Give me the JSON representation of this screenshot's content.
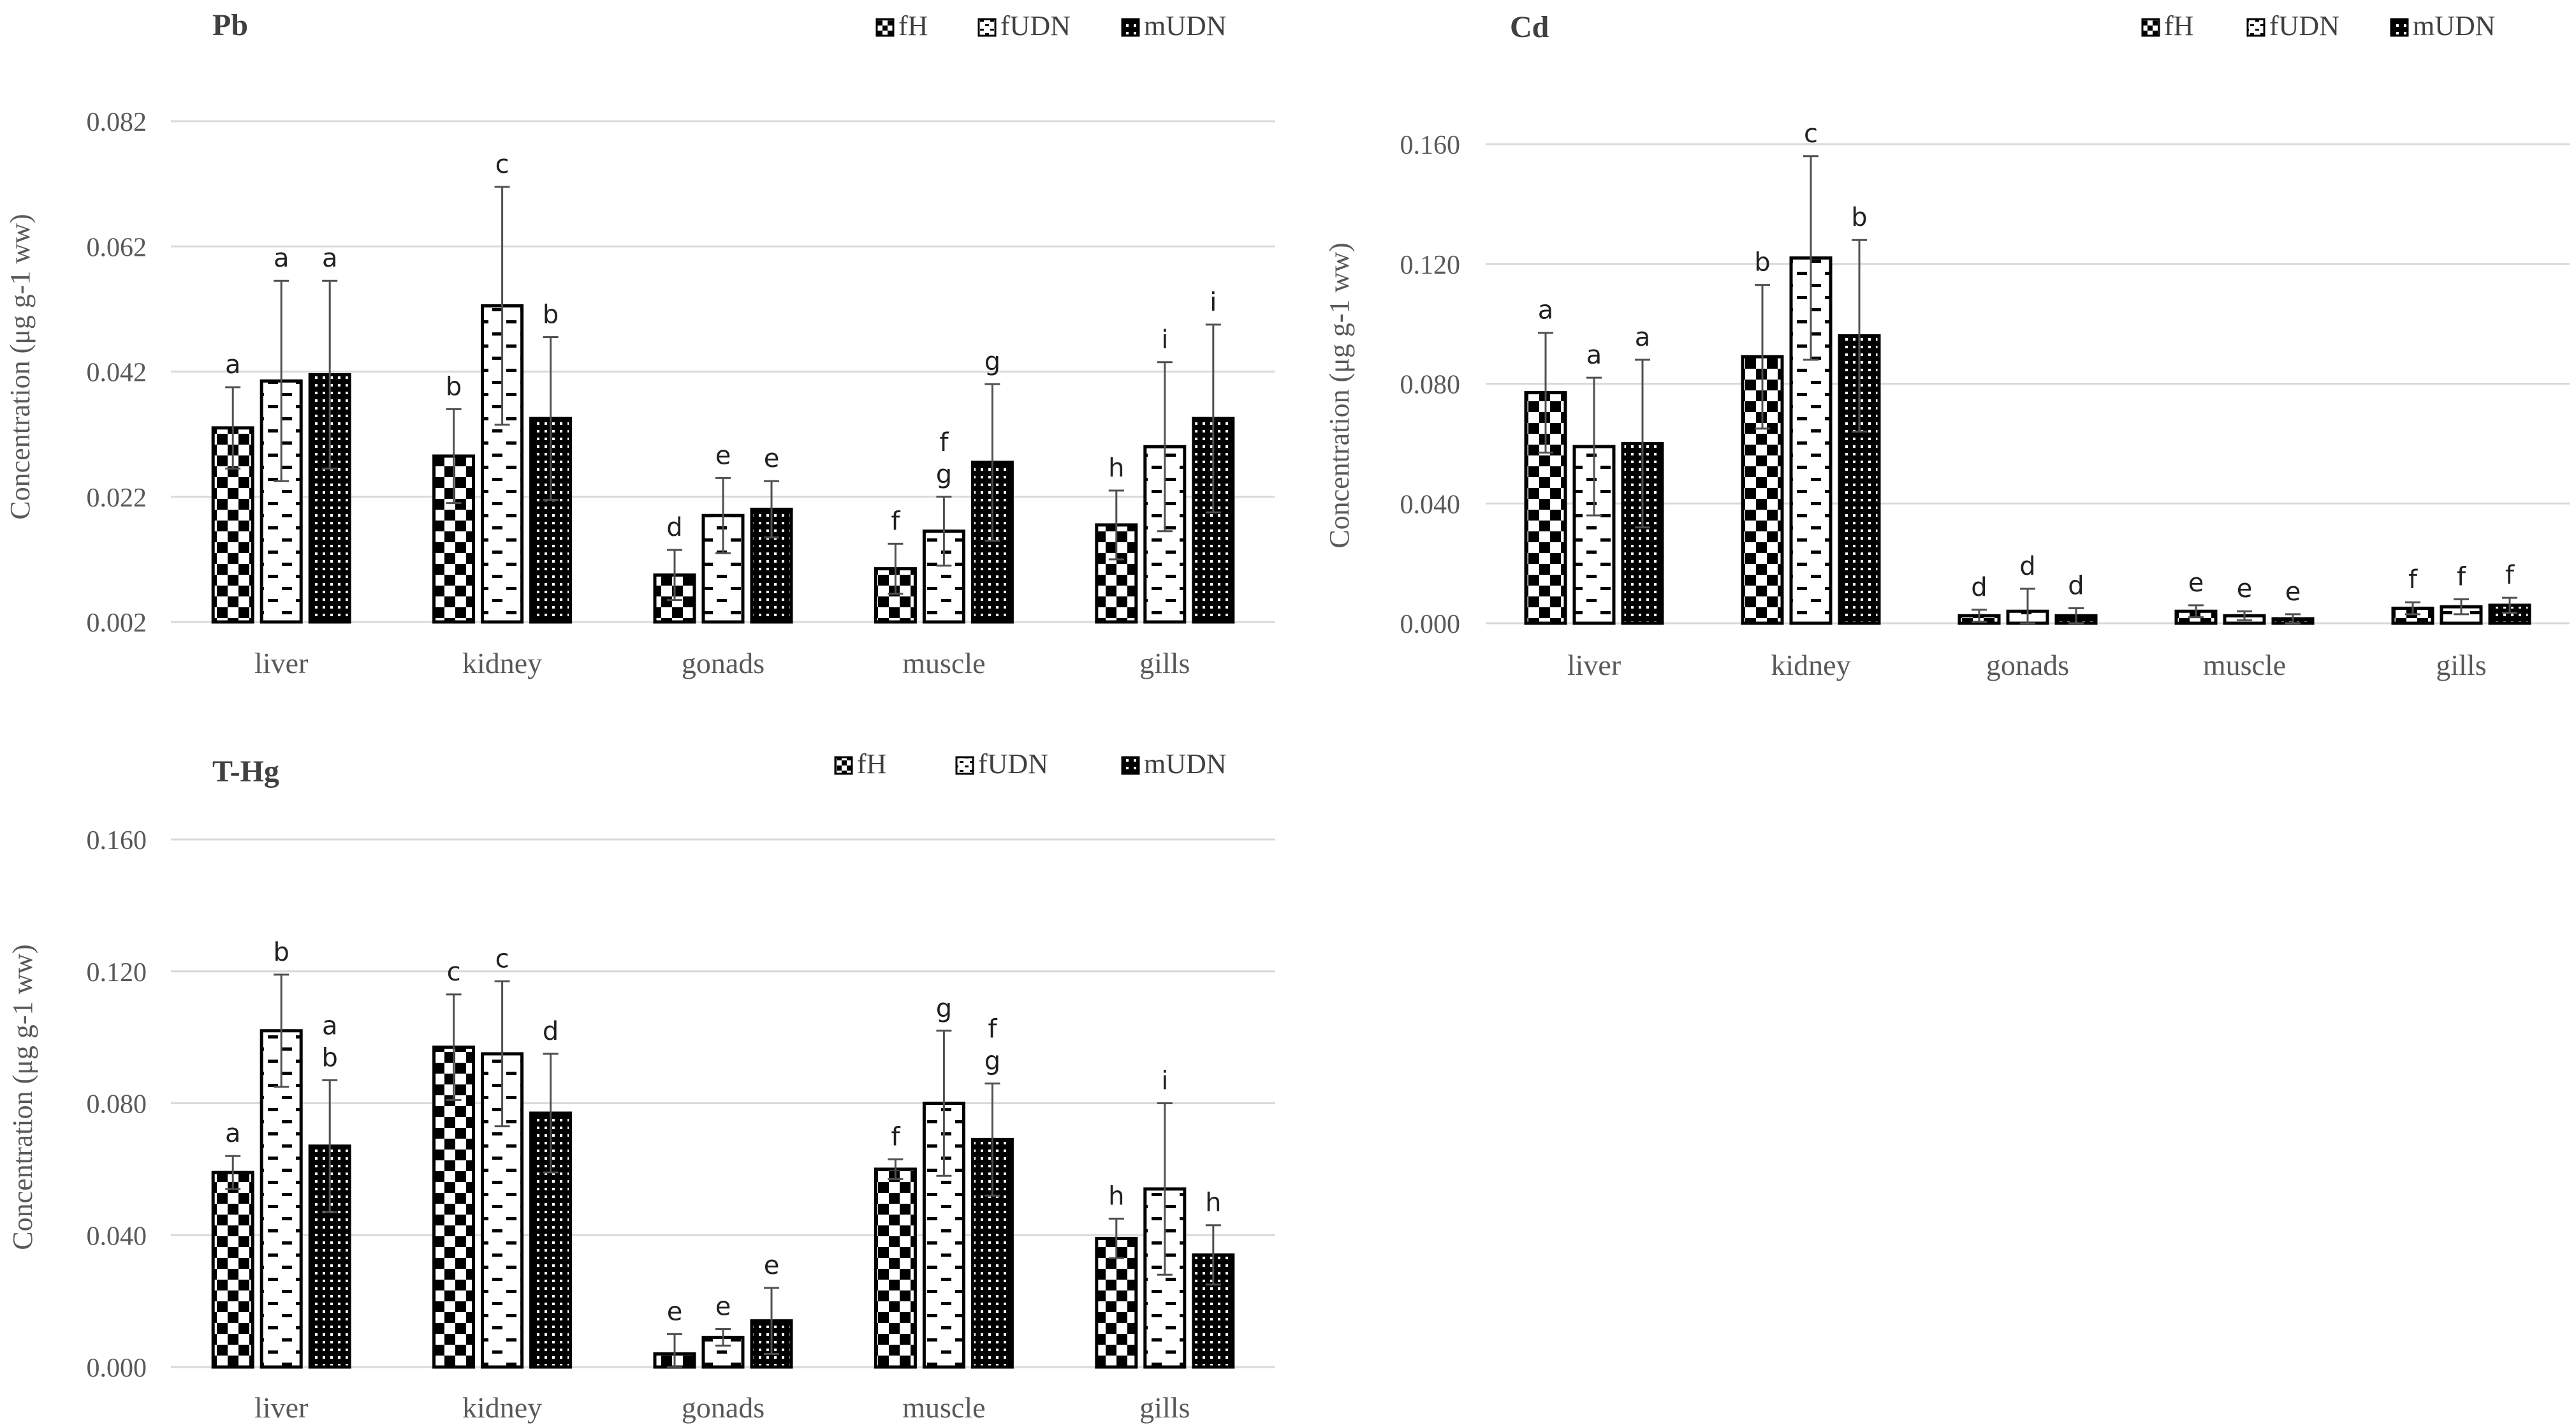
{
  "figure": {
    "panel_order": [
      "Pb",
      "Cd",
      "T-Hg"
    ]
  },
  "chart_data": [
    {
      "type": "bar",
      "title": "Pb",
      "xlabel": "",
      "ylabel": "Concentration (μg g-1 ww)",
      "ylim": [
        0.002,
        0.082
      ],
      "yticks": [
        0.002,
        0.022,
        0.042,
        0.062,
        0.082
      ],
      "ytick_labels": [
        "0.002",
        "0.022",
        "0.042",
        "0.062",
        "0.082"
      ],
      "categories": [
        "liver",
        "kidney",
        "gonads",
        "muscle",
        "gills"
      ],
      "legend_position": "top-right",
      "grid": true,
      "series": [
        {
          "name": "fH",
          "pattern": "checker",
          "values": [
            0.033,
            0.0285,
            0.0095,
            0.0105,
            0.0175
          ],
          "errors": [
            0.0065,
            0.0075,
            0.004,
            0.004,
            0.0055
          ],
          "letters": [
            "a",
            "b",
            "d",
            "f",
            "h"
          ]
        },
        {
          "name": "fUDN",
          "pattern": "dash",
          "values": [
            0.0405,
            0.0525,
            0.019,
            0.0165,
            0.03
          ],
          "errors": [
            0.016,
            0.019,
            0.006,
            0.0055,
            0.0135
          ],
          "letters": [
            "a",
            "c",
            "e",
            "f\ng",
            "i"
          ]
        },
        {
          "name": "mUDN",
          "pattern": "dots",
          "values": [
            0.0415,
            0.0345,
            0.02,
            0.0275,
            0.0345
          ],
          "errors": [
            0.015,
            0.013,
            0.0045,
            0.0125,
            0.015
          ],
          "letters": [
            "a",
            "b",
            "e",
            "g",
            "i"
          ]
        }
      ]
    },
    {
      "type": "bar",
      "title": "Cd",
      "xlabel": "",
      "ylabel": "Concentration (μg g-1 ww)",
      "ylim": [
        0,
        0.16
      ],
      "yticks": [
        0,
        0.04,
        0.08,
        0.12,
        0.16
      ],
      "ytick_labels": [
        "0.000",
        "0.040",
        "0.080",
        "0.120",
        "0.160"
      ],
      "categories": [
        "liver",
        "kidney",
        "gonads",
        "muscle",
        "gills"
      ],
      "legend_position": "top-right",
      "grid": true,
      "series": [
        {
          "name": "fH",
          "pattern": "checker",
          "values": [
            0.077,
            0.089,
            0.0025,
            0.004,
            0.005
          ],
          "errors": [
            0.02,
            0.024,
            0.002,
            0.002,
            0.002
          ],
          "letters": [
            "a",
            "b",
            "d",
            "e",
            "f"
          ]
        },
        {
          "name": "fUDN",
          "pattern": "dash",
          "values": [
            0.059,
            0.122,
            0.004,
            0.0025,
            0.0055
          ],
          "errors": [
            0.023,
            0.034,
            0.0075,
            0.0015,
            0.0025
          ],
          "letters": [
            "a",
            "c",
            "d",
            "e",
            "f"
          ]
        },
        {
          "name": "mUDN",
          "pattern": "dots",
          "values": [
            0.06,
            0.096,
            0.0025,
            0.0015,
            0.006
          ],
          "errors": [
            0.028,
            0.032,
            0.0025,
            0.0015,
            0.0025
          ],
          "letters": [
            "a",
            "b",
            "d",
            "e",
            "f"
          ]
        }
      ]
    },
    {
      "type": "bar",
      "title": "T-Hg",
      "xlabel": "",
      "ylabel": "Concentration (μg g-1 ww)",
      "ylim": [
        0,
        0.16
      ],
      "yticks": [
        0,
        0.04,
        0.08,
        0.12,
        0.16
      ],
      "ytick_labels": [
        "0.000",
        "0.040",
        "0.080",
        "0.120",
        "0.160"
      ],
      "categories": [
        "liver",
        "kidney",
        "gonads",
        "muscle",
        "gills"
      ],
      "legend_position": "top-right",
      "grid": true,
      "series": [
        {
          "name": "fH",
          "pattern": "checker",
          "values": [
            0.059,
            0.097,
            0.004,
            0.06,
            0.039
          ],
          "errors": [
            0.005,
            0.016,
            0.006,
            0.003,
            0.006
          ],
          "letters": [
            "a",
            "c",
            "e",
            "f",
            "h"
          ]
        },
        {
          "name": "fUDN",
          "pattern": "dash",
          "values": [
            0.102,
            0.095,
            0.009,
            0.08,
            0.054
          ],
          "errors": [
            0.017,
            0.022,
            0.0025,
            0.022,
            0.026
          ],
          "letters": [
            "b",
            "c",
            "e",
            "g",
            "i"
          ]
        },
        {
          "name": "mUDN",
          "pattern": "dots",
          "values": [
            0.067,
            0.077,
            0.014,
            0.069,
            0.034
          ],
          "errors": [
            0.02,
            0.018,
            0.01,
            0.017,
            0.009
          ],
          "letters": [
            "a\nb",
            "d",
            "e",
            "f\ng",
            "h"
          ]
        }
      ]
    }
  ]
}
